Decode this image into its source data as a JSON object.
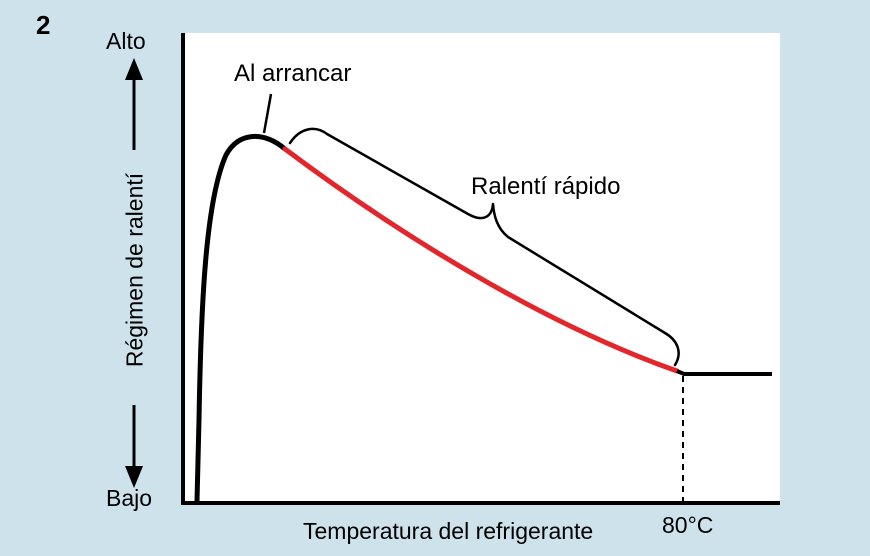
{
  "figure": {
    "number": "2"
  },
  "axes": {
    "y_label": "Régimen de ralentí",
    "y_top": "Alto",
    "y_bottom": "Bajo",
    "x_label": "Temperatura del refrigerante",
    "x_marker": "80°C"
  },
  "annotations": {
    "start": "Al arrancar",
    "fast_idle": "Ralentí rápido"
  },
  "colors": {
    "background": "#cde2ea",
    "panel": "#ffffff",
    "curve": "#000000",
    "fast_idle_curve": "#e3262b"
  }
}
